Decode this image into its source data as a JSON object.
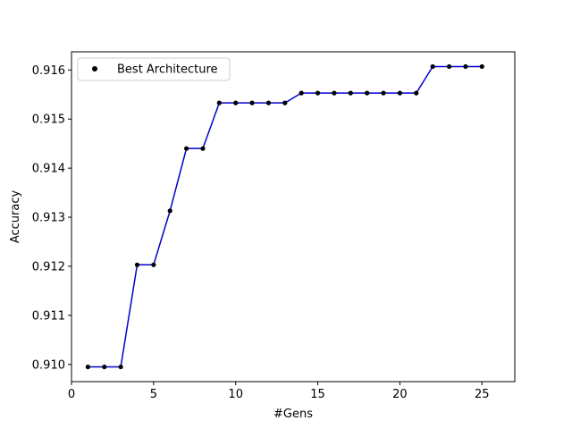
{
  "chart_data": {
    "type": "line",
    "title": "",
    "xlabel": "#Gens",
    "ylabel": "Accuracy",
    "xlim": [
      0,
      27
    ],
    "ylim": [
      0.90965,
      0.91637
    ],
    "x_ticks": [
      0,
      5,
      10,
      15,
      20,
      25
    ],
    "y_ticks": [
      0.91,
      0.911,
      0.912,
      0.913,
      0.914,
      0.915,
      0.916
    ],
    "y_tick_labels": [
      "0.910",
      "0.911",
      "0.912",
      "0.913",
      "0.914",
      "0.915",
      "0.916"
    ],
    "grid": false,
    "legend": {
      "placement": "top-left",
      "entries": [
        "Best Architecture"
      ]
    },
    "series": [
      {
        "name": "Best Architecture",
        "line_color": "#0000cc",
        "marker_color": "#000000",
        "x": [
          1,
          2,
          3,
          4,
          5,
          6,
          7,
          8,
          9,
          10,
          11,
          12,
          13,
          14,
          15,
          16,
          17,
          18,
          19,
          20,
          21,
          22,
          23,
          24,
          25
        ],
        "values": [
          0.90995,
          0.90995,
          0.90995,
          0.91203,
          0.91203,
          0.91313,
          0.9144,
          0.9144,
          0.91533,
          0.91533,
          0.91533,
          0.91533,
          0.91533,
          0.91553,
          0.91553,
          0.91553,
          0.91553,
          0.91553,
          0.91553,
          0.91553,
          0.91553,
          0.91607,
          0.91607,
          0.91607,
          0.91607
        ]
      }
    ]
  }
}
